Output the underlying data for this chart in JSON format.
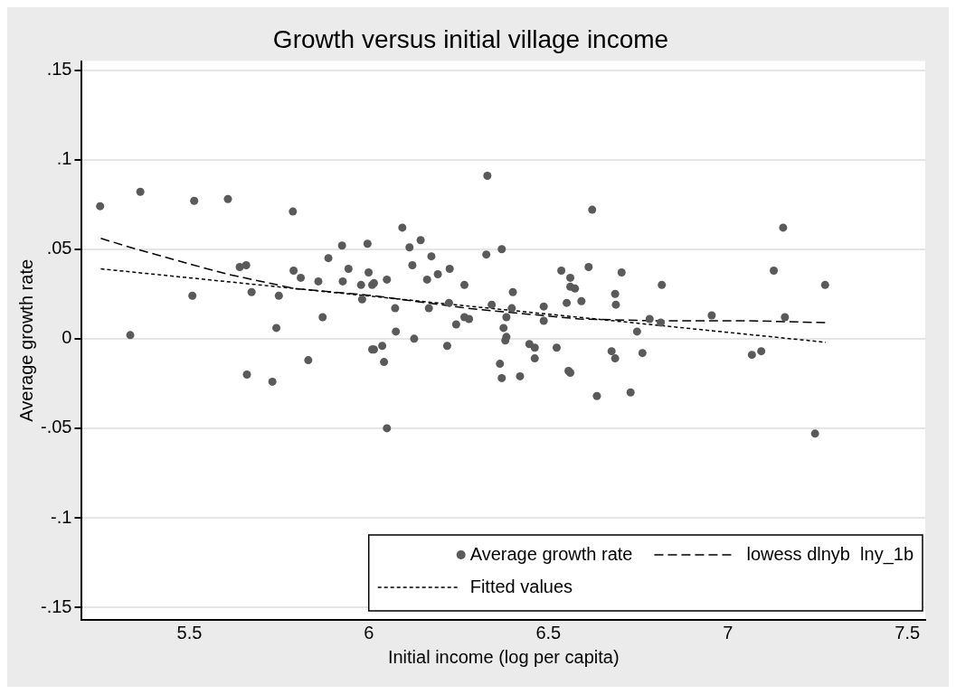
{
  "chart_data": {
    "type": "scatter",
    "title": "Growth versus initial village income",
    "xlabel": "Initial income (log per capita)",
    "ylabel": "Average growth rate",
    "xlim": [
      5.2,
      7.55
    ],
    "xticks": [
      5.5,
      6,
      6.5,
      7,
      7.5
    ],
    "ylim": [
      -0.157,
      0.155
    ],
    "yticks": [
      {
        "value": 0.15,
        "label": ".15"
      },
      {
        "value": 0.1,
        "label": ".1"
      },
      {
        "value": 0.05,
        "label": ".05"
      },
      {
        "value": 0,
        "label": "0"
      },
      {
        "value": -0.05,
        "label": "-.05"
      },
      {
        "value": -0.1,
        "label": "-.1"
      },
      {
        "value": -0.15,
        "label": "-.15"
      }
    ],
    "grid": "y",
    "legend": "bottom",
    "series": [
      {
        "name": "Average growth rate",
        "marker": "circle",
        "color": "#5a5a5a",
        "x": [
          5.251,
          5.363,
          5.513,
          5.607,
          5.788,
          5.335,
          5.508,
          5.64,
          5.658,
          5.673,
          5.749,
          5.742,
          5.66,
          5.731,
          5.831,
          5.79,
          5.81,
          5.859,
          5.887,
          5.871,
          5.925,
          5.943,
          5.927,
          5.978,
          5.981,
          5.996,
          5.999,
          6.009,
          6.009,
          6.014,
          6.05,
          6.093,
          6.113,
          6.144,
          6.174,
          6.121,
          6.162,
          6.192,
          6.225,
          6.266,
          6.073,
          6.167,
          6.223,
          6.075,
          6.126,
          6.218,
          6.243,
          6.266,
          6.279,
          6.014,
          6.037,
          6.042,
          6.05,
          6.33,
          6.327,
          6.37,
          6.401,
          6.342,
          6.398,
          6.383,
          6.375,
          6.383,
          6.38,
          6.365,
          6.37,
          6.421,
          6.447,
          6.462,
          6.462,
          6.487,
          6.487,
          6.523,
          6.536,
          6.561,
          6.561,
          6.574,
          6.551,
          6.592,
          6.556,
          6.561,
          6.612,
          6.622,
          6.635,
          6.704,
          6.686,
          6.688,
          6.676,
          6.686,
          6.729,
          6.747,
          6.762,
          6.782,
          6.816,
          6.813,
          6.955,
          7.154,
          7.128,
          7.271,
          7.159,
          7.067,
          7.093,
          7.243
        ],
        "values": [
          0.074,
          0.082,
          0.077,
          0.078,
          0.071,
          0.002,
          0.024,
          0.04,
          0.041,
          0.026,
          0.024,
          0.006,
          -0.02,
          -0.024,
          -0.012,
          0.038,
          0.034,
          0.032,
          0.045,
          0.012,
          0.052,
          0.039,
          0.032,
          0.03,
          0.022,
          0.053,
          0.037,
          0.03,
          -0.006,
          0.031,
          0.033,
          0.062,
          0.051,
          0.055,
          0.046,
          0.041,
          0.033,
          0.036,
          0.039,
          0.03,
          0.017,
          0.017,
          0.02,
          0.004,
          0.0,
          -0.004,
          0.008,
          0.012,
          0.011,
          -0.006,
          -0.004,
          -0.013,
          -0.05,
          0.091,
          0.047,
          0.05,
          0.026,
          0.019,
          0.017,
          0.012,
          0.006,
          0.001,
          -0.001,
          -0.014,
          -0.022,
          -0.021,
          -0.003,
          -0.005,
          -0.011,
          0.018,
          0.01,
          -0.005,
          0.038,
          0.034,
          0.029,
          0.028,
          0.02,
          0.021,
          -0.018,
          -0.019,
          0.04,
          0.072,
          -0.032,
          0.037,
          0.025,
          0.019,
          -0.007,
          -0.011,
          -0.03,
          0.004,
          -0.008,
          0.011,
          0.03,
          0.009,
          0.013,
          0.062,
          0.038,
          0.03,
          0.012,
          -0.009,
          -0.007,
          -0.053
        ]
      },
      {
        "name": "lowess dlnyb  lny_1b",
        "type": "line",
        "marker": "none",
        "line_style": "dashed",
        "color": "#000000",
        "x": [
          5.253,
          5.335,
          5.513,
          5.607,
          5.676,
          5.793,
          6.014,
          6.274,
          6.375,
          6.587,
          6.8,
          7.062,
          7.271
        ],
        "values": [
          0.056,
          0.051,
          0.041,
          0.036,
          0.033,
          0.028,
          0.024,
          0.017,
          0.015,
          0.011,
          0.01,
          0.01,
          0.009
        ]
      },
      {
        "name": "Fitted values",
        "type": "line",
        "marker": "none",
        "line_style": "dotted",
        "color": "#000000",
        "x": [
          5.253,
          7.273
        ],
        "values": [
          0.039,
          -0.002
        ]
      }
    ]
  }
}
